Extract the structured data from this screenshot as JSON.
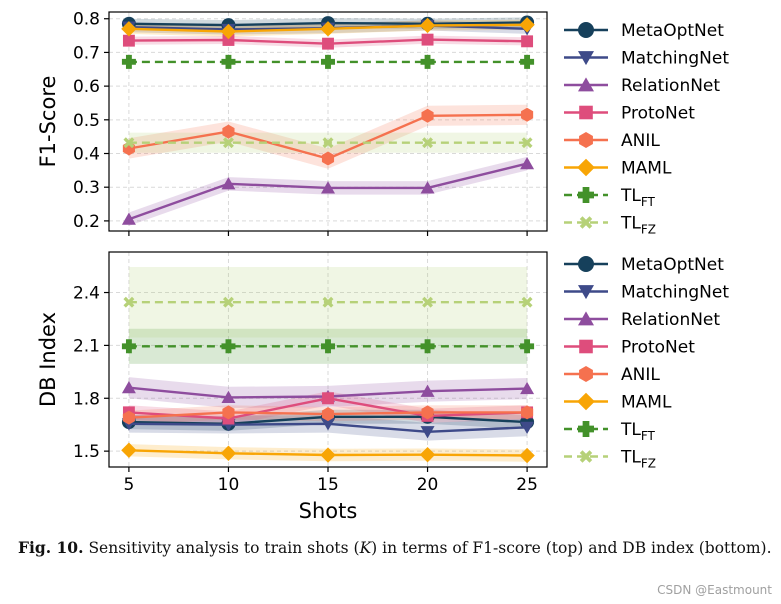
{
  "chart_data": [
    {
      "type": "line",
      "panel": "top",
      "ylabel": "F1-Score",
      "xlabel": "",
      "x": [
        5,
        10,
        15,
        20,
        25
      ],
      "ylim": [
        0.17,
        0.82
      ],
      "yticks": [
        0.2,
        0.3,
        0.4,
        0.5,
        0.6,
        0.7,
        0.8
      ],
      "ytick_labels": [
        "0.2",
        "0.3",
        "0.4",
        "0.5",
        "0.6",
        "0.7",
        "0.8"
      ],
      "grid": true,
      "series": [
        {
          "name": "MetaOptNet",
          "values": [
            0.785,
            0.781,
            0.787,
            0.785,
            0.789
          ],
          "band": 0.015,
          "color": "#16405b",
          "marker": "circle"
        },
        {
          "name": "MatchingNet",
          "values": [
            0.775,
            0.768,
            0.772,
            0.78,
            0.77
          ],
          "band": 0.015,
          "color": "#3e4a89",
          "marker": "triangle-down"
        },
        {
          "name": "RelationNet",
          "values": [
            0.205,
            0.31,
            0.298,
            0.298,
            0.37
          ],
          "band": 0.02,
          "color": "#8e4d9e",
          "marker": "triangle-up"
        },
        {
          "name": "ProtoNet",
          "values": [
            0.735,
            0.737,
            0.726,
            0.738,
            0.733
          ],
          "band": 0.012,
          "color": "#de4d7c",
          "marker": "square"
        },
        {
          "name": "ANIL",
          "values": [
            0.415,
            0.465,
            0.385,
            0.512,
            0.515
          ],
          "band": 0.03,
          "color": "#f5714f",
          "marker": "hexagon"
        },
        {
          "name": "MAML",
          "values": [
            0.77,
            0.762,
            0.77,
            0.78,
            0.782
          ],
          "band": 0.015,
          "color": "#f8a505",
          "marker": "diamond"
        },
        {
          "name": "TLFT",
          "values": [
            0.672,
            0.672,
            0.672,
            0.672,
            0.672
          ],
          "band": 0.0,
          "color": "#43912a",
          "marker": "plus",
          "dashed": true
        },
        {
          "name": "TLFZ",
          "values": [
            0.432,
            0.432,
            0.432,
            0.432,
            0.432
          ],
          "band": 0.03,
          "color": "#b6d178",
          "marker": "x",
          "dashed": true
        }
      ]
    },
    {
      "type": "line",
      "panel": "bottom",
      "ylabel": "DB Index",
      "xlabel": "Shots",
      "x": [
        5,
        10,
        15,
        20,
        25
      ],
      "xtick_labels": [
        "5",
        "10",
        "15",
        "20",
        "25"
      ],
      "ylim": [
        1.41,
        2.63
      ],
      "yticks": [
        1.5,
        1.8,
        2.1,
        2.4
      ],
      "ytick_labels": [
        "1.5",
        "1.8",
        "2.1",
        "2.4"
      ],
      "grid": true,
      "series": [
        {
          "name": "MetaOptNet",
          "values": [
            1.665,
            1.655,
            1.695,
            1.695,
            1.665
          ],
          "band": 0.04,
          "color": "#16405b",
          "marker": "circle"
        },
        {
          "name": "MatchingNet",
          "values": [
            1.655,
            1.65,
            1.655,
            1.61,
            1.635
          ],
          "band": 0.05,
          "color": "#3e4a89",
          "marker": "triangle-down"
        },
        {
          "name": "RelationNet",
          "values": [
            1.86,
            1.805,
            1.81,
            1.84,
            1.855
          ],
          "band": 0.06,
          "color": "#8e4d9e",
          "marker": "triangle-up"
        },
        {
          "name": "ProtoNet",
          "values": [
            1.72,
            1.685,
            1.8,
            1.7,
            1.72
          ],
          "band": 0.04,
          "color": "#de4d7c",
          "marker": "square"
        },
        {
          "name": "ANIL",
          "values": [
            1.69,
            1.72,
            1.71,
            1.72,
            1.72
          ],
          "band": 0.04,
          "color": "#f5714f",
          "marker": "hexagon"
        },
        {
          "name": "MAML",
          "values": [
            1.505,
            1.488,
            1.478,
            1.48,
            1.475
          ],
          "band": 0.035,
          "color": "#f8a505",
          "marker": "diamond"
        },
        {
          "name": "TLFT",
          "values": [
            2.095,
            2.095,
            2.095,
            2.095,
            2.095
          ],
          "band": 0.1,
          "color": "#43912a",
          "marker": "plus",
          "dashed": true
        },
        {
          "name": "TLFZ",
          "values": [
            2.345,
            2.345,
            2.345,
            2.345,
            2.345
          ],
          "band": 0.2,
          "color": "#b6d178",
          "marker": "x",
          "dashed": true
        }
      ]
    }
  ],
  "legend": {
    "placement": "outside-right",
    "entries": [
      {
        "label": "MetaOptNet",
        "sub": ""
      },
      {
        "label": "MatchingNet",
        "sub": ""
      },
      {
        "label": "RelationNet",
        "sub": ""
      },
      {
        "label": "ProtoNet",
        "sub": ""
      },
      {
        "label": "ANIL",
        "sub": ""
      },
      {
        "label": "MAML",
        "sub": ""
      },
      {
        "label": "TL",
        "sub": "FT"
      },
      {
        "label": "TL",
        "sub": "FZ"
      }
    ]
  },
  "caption": {
    "label": "Fig. 10.",
    "text_before": "Sensitivity analysis to train shots (",
    "variable": "K",
    "text_after": ") in terms of F1-score (top) and DB index (bottom)."
  },
  "watermark": "CSDN @Eastmount"
}
